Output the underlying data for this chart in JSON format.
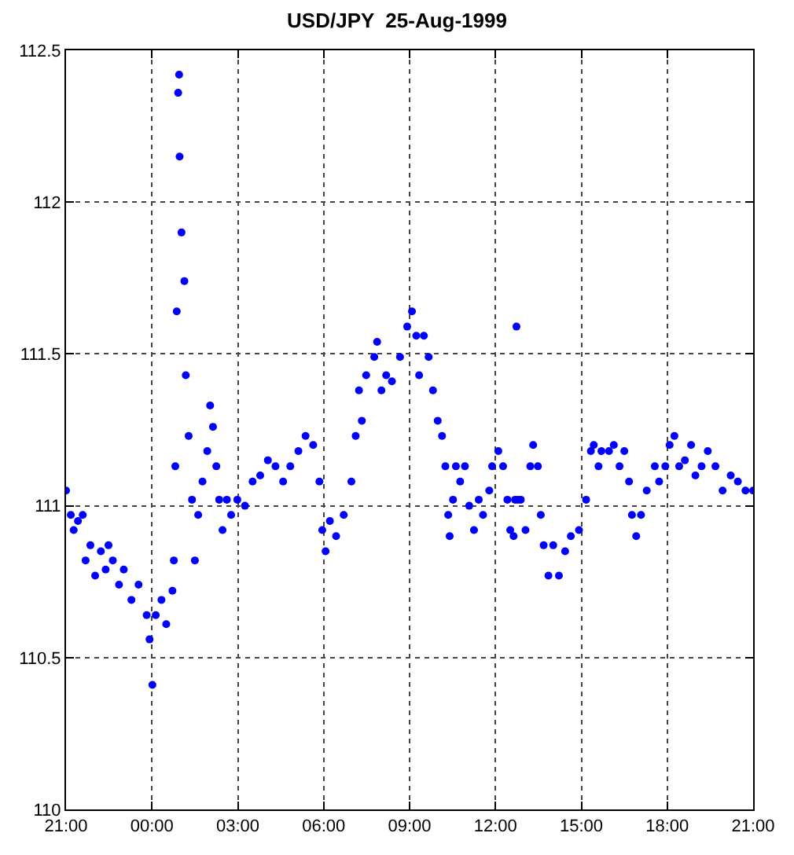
{
  "chart_data": {
    "type": "scatter",
    "title": "USD/JPY  25-Aug-1999",
    "xlim": [
      "1999-08-24T21:00",
      "1999-08-25T21:00"
    ],
    "ylim": [
      110,
      112.5
    ],
    "xticks": [
      {
        "value": "1999-08-24T21:00",
        "label": "21:00"
      },
      {
        "value": "1999-08-25T00:00",
        "label": "00:00"
      },
      {
        "value": "1999-08-25T03:00",
        "label": "03:00"
      },
      {
        "value": "1999-08-25T06:00",
        "label": "06:00"
      },
      {
        "value": "1999-08-25T09:00",
        "label": "09:00"
      },
      {
        "value": "1999-08-25T12:00",
        "label": "12:00"
      },
      {
        "value": "1999-08-25T15:00",
        "label": "15:00"
      },
      {
        "value": "1999-08-25T18:00",
        "label": "18:00"
      },
      {
        "value": "1999-08-25T21:00",
        "label": "21:00"
      }
    ],
    "yticks": [
      110,
      110.5,
      111,
      111.5,
      112,
      112.5
    ],
    "grid": true,
    "marker": "circle",
    "series": [
      {
        "color": "#0000ff",
        "x": [
          "1999-08-24T21:00",
          "1999-08-24T21:10",
          "1999-08-24T21:16",
          "1999-08-24T21:25",
          "1999-08-24T21:35",
          "1999-08-24T21:41",
          "1999-08-24T21:51",
          "1999-08-24T22:01",
          "1999-08-24T22:13",
          "1999-08-24T22:23",
          "1999-08-24T22:29",
          "1999-08-24T22:38",
          "1999-08-24T22:51",
          "1999-08-24T23:01",
          "1999-08-24T23:17",
          "1999-08-24T23:32",
          "1999-08-24T23:49",
          "1999-08-24T23:55",
          "1999-08-25T00:01",
          "1999-08-25T00:08",
          "1999-08-25T00:20",
          "1999-08-25T00:30",
          "1999-08-25T00:43",
          "1999-08-25T00:46",
          "1999-08-25T00:49",
          "1999-08-25T00:52",
          "1999-08-25T00:55",
          "1999-08-25T00:57",
          "1999-08-25T00:58",
          "1999-08-25T01:02",
          "1999-08-25T01:08",
          "1999-08-25T01:11",
          "1999-08-25T01:17",
          "1999-08-25T01:24",
          "1999-08-25T01:30",
          "1999-08-25T01:37",
          "1999-08-25T01:46",
          "1999-08-25T01:56",
          "1999-08-25T02:02",
          "1999-08-25T02:08",
          "1999-08-25T02:15",
          "1999-08-25T02:21",
          "1999-08-25T02:28",
          "1999-08-25T02:37",
          "1999-08-25T02:46",
          "1999-08-25T02:59",
          "1999-08-25T03:15",
          "1999-08-25T03:31",
          "1999-08-25T03:47",
          "1999-08-25T04:03",
          "1999-08-25T04:19",
          "1999-08-25T04:35",
          "1999-08-25T04:50",
          "1999-08-25T05:07",
          "1999-08-25T05:22",
          "1999-08-25T05:38",
          "1999-08-25T05:51",
          "1999-08-25T05:57",
          "1999-08-25T06:04",
          "1999-08-25T06:13",
          "1999-08-25T06:26",
          "1999-08-25T06:42",
          "1999-08-25T06:58",
          "1999-08-25T07:07",
          "1999-08-25T07:14",
          "1999-08-25T07:20",
          "1999-08-25T07:29",
          "1999-08-25T07:46",
          "1999-08-25T07:52",
          "1999-08-25T08:01",
          "1999-08-25T08:11",
          "1999-08-25T08:23",
          "1999-08-25T08:40",
          "1999-08-25T08:55",
          "1999-08-25T09:05",
          "1999-08-25T09:14",
          "1999-08-25T09:20",
          "1999-08-25T09:30",
          "1999-08-25T09:40",
          "1999-08-25T09:49",
          "1999-08-25T09:59",
          "1999-08-25T10:08",
          "1999-08-25T10:15",
          "1999-08-25T10:21",
          "1999-08-25T10:24",
          "1999-08-25T10:31",
          "1999-08-25T10:37",
          "1999-08-25T10:46",
          "1999-08-25T10:56",
          "1999-08-25T11:05",
          "1999-08-25T11:15",
          "1999-08-25T11:25",
          "1999-08-25T11:34",
          "1999-08-25T11:47",
          "1999-08-25T11:53",
          "1999-08-25T12:06",
          "1999-08-25T12:16",
          "1999-08-25T12:25",
          "1999-08-25T12:31",
          "1999-08-25T12:38",
          "1999-08-25T12:41",
          "1999-08-25T12:44",
          "1999-08-25T12:47",
          "1999-08-25T12:53",
          "1999-08-25T13:03",
          "1999-08-25T13:13",
          "1999-08-25T13:19",
          "1999-08-25T13:29",
          "1999-08-25T13:35",
          "1999-08-25T13:41",
          "1999-08-25T13:51",
          "1999-08-25T14:01",
          "1999-08-25T14:13",
          "1999-08-25T14:26",
          "1999-08-25T14:38",
          "1999-08-25T14:55",
          "1999-08-25T15:10",
          "1999-08-25T15:20",
          "1999-08-25T15:26",
          "1999-08-25T15:36",
          "1999-08-25T15:42",
          "1999-08-25T15:58",
          "1999-08-25T16:08",
          "1999-08-25T16:20",
          "1999-08-25T16:30",
          "1999-08-25T16:40",
          "1999-08-25T16:46",
          "1999-08-25T16:55",
          "1999-08-25T17:05",
          "1999-08-25T17:17",
          "1999-08-25T17:34",
          "1999-08-25T17:43",
          "1999-08-25T17:56",
          "1999-08-25T18:05",
          "1999-08-25T18:15",
          "1999-08-25T18:25",
          "1999-08-25T18:37",
          "1999-08-25T18:50",
          "1999-08-25T18:59",
          "1999-08-25T19:12",
          "1999-08-25T19:25",
          "1999-08-25T19:41",
          "1999-08-25T19:56",
          "1999-08-25T20:13",
          "1999-08-25T20:28",
          "1999-08-25T20:44",
          "1999-08-25T21:00"
        ],
        "values": [
          111.05,
          110.97,
          110.92,
          110.95,
          110.97,
          110.82,
          110.87,
          110.77,
          110.85,
          110.79,
          110.87,
          110.82,
          110.74,
          110.79,
          110.69,
          110.74,
          110.64,
          110.56,
          110.41,
          110.64,
          110.69,
          110.61,
          110.72,
          110.82,
          111.13,
          111.64,
          112.36,
          112.42,
          112.15,
          111.9,
          111.74,
          111.43,
          111.23,
          111.02,
          110.82,
          110.97,
          111.08,
          111.18,
          111.33,
          111.26,
          111.13,
          111.02,
          110.92,
          111.02,
          110.97,
          111.02,
          111.0,
          111.08,
          111.1,
          111.15,
          111.13,
          111.08,
          111.13,
          111.18,
          111.23,
          111.2,
          111.08,
          110.92,
          110.85,
          110.95,
          110.9,
          110.97,
          111.08,
          111.23,
          111.38,
          111.28,
          111.43,
          111.49,
          111.54,
          111.38,
          111.43,
          111.41,
          111.49,
          111.59,
          111.64,
          111.56,
          111.43,
          111.56,
          111.49,
          111.38,
          111.28,
          111.23,
          111.13,
          110.97,
          110.9,
          111.02,
          111.13,
          111.08,
          111.13,
          111.0,
          110.92,
          111.02,
          110.97,
          111.05,
          111.13,
          111.18,
          111.13,
          111.02,
          110.92,
          110.9,
          111.02,
          111.59,
          111.02,
          111.02,
          110.92,
          111.13,
          111.2,
          111.13,
          110.97,
          110.87,
          110.77,
          110.87,
          110.77,
          110.85,
          110.9,
          110.92,
          111.02,
          111.18,
          111.2,
          111.13,
          111.18,
          111.18,
          111.2,
          111.13,
          111.18,
          111.08,
          110.97,
          110.9,
          110.97,
          111.05,
          111.13,
          111.08,
          111.13,
          111.2,
          111.23,
          111.13,
          111.15,
          111.2,
          111.1,
          111.13,
          111.18,
          111.13,
          111.05,
          111.1,
          111.08,
          111.05,
          111.05
        ]
      }
    ]
  }
}
